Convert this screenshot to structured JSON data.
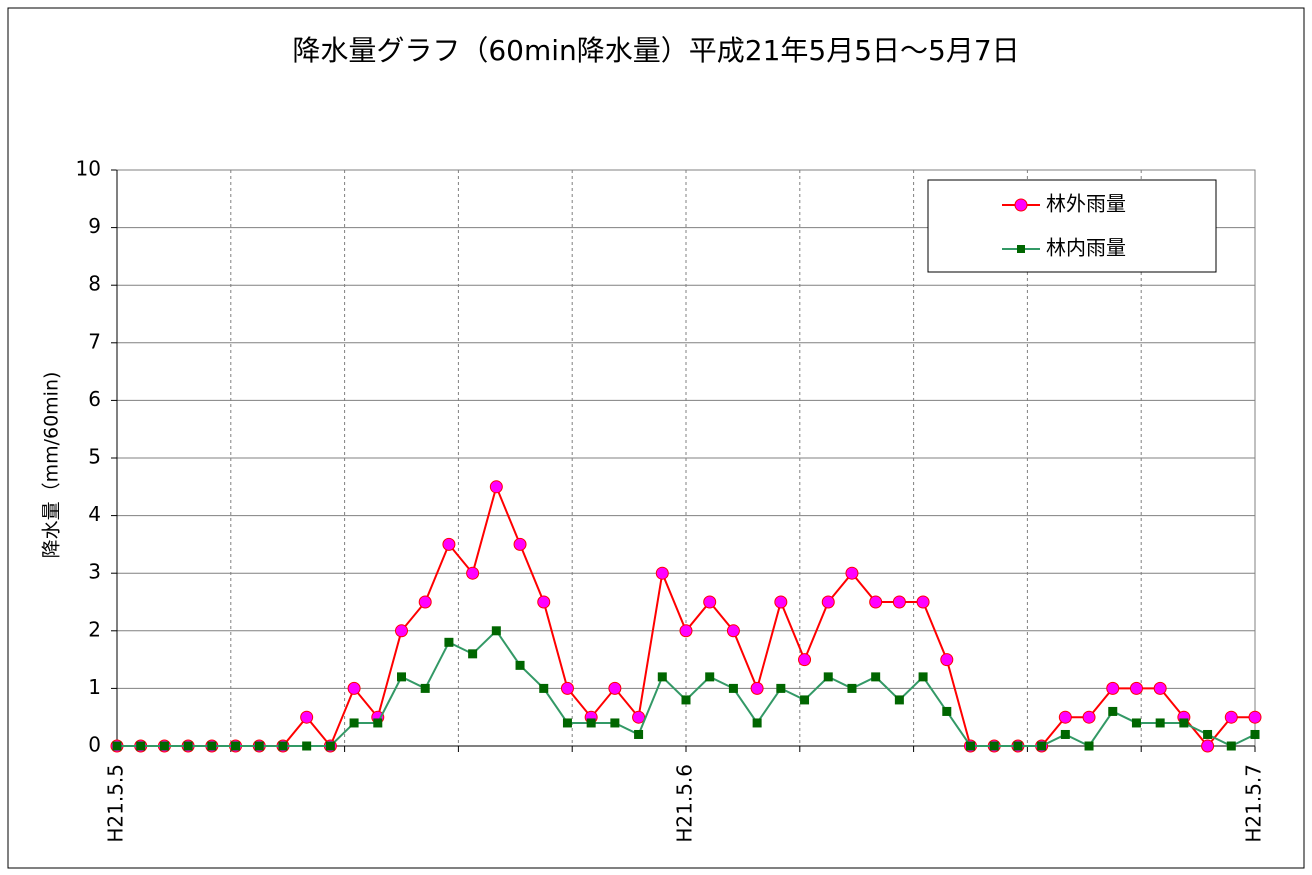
{
  "chart_data": {
    "type": "line",
    "title": "降水量グラフ（60min降水量）平成21年5月5日～5月7日",
    "y_label": "降水量（mm/60min)",
    "x": [
      0,
      1,
      2,
      3,
      4,
      5,
      6,
      7,
      8,
      9,
      10,
      11,
      12,
      13,
      14,
      15,
      16,
      17,
      18,
      19,
      20,
      21,
      22,
      23,
      24,
      25,
      26,
      27,
      28,
      29,
      30,
      31,
      32,
      33,
      34,
      35,
      36,
      37,
      38,
      39,
      40,
      41,
      42,
      43,
      44,
      45,
      46,
      47,
      48
    ],
    "series": [
      {
        "name": "林外雨量",
        "color": "#ff0000",
        "marker": "circle",
        "marker_color": "#ff00ff",
        "values": [
          0,
          0,
          0,
          0,
          0,
          0,
          0,
          0,
          0.5,
          0,
          1,
          0.5,
          2,
          2.5,
          3.5,
          3,
          4.5,
          3.5,
          2.5,
          1,
          0.5,
          1,
          0.5,
          3,
          2,
          2.5,
          2,
          1,
          2.5,
          1.5,
          2.5,
          3,
          2.5,
          2.5,
          2.5,
          1.5,
          0,
          0,
          0,
          0,
          0.5,
          0.5,
          1,
          1,
          1,
          0.5,
          0,
          0.5,
          0.5
        ]
      },
      {
        "name": "林内雨量",
        "color": "#339966",
        "marker": "square",
        "marker_color": "#006600",
        "values": [
          0,
          0,
          0,
          0,
          0,
          0,
          0,
          0,
          0,
          0,
          0.4,
          0.4,
          1.2,
          1.0,
          1.8,
          1.6,
          2.0,
          1.4,
          1.0,
          0.4,
          0.4,
          0.4,
          0.2,
          1.2,
          0.8,
          1.2,
          1.0,
          0.4,
          1.0,
          0.8,
          1.2,
          1.0,
          1.2,
          0.8,
          1.2,
          0.6,
          0,
          0,
          0,
          0,
          0.2,
          0,
          0.6,
          0.4,
          0.4,
          0.4,
          0.2,
          0,
          0.2
        ]
      }
    ],
    "xlim": [
      0,
      48
    ],
    "xticks": [
      {
        "value": 0,
        "label": "H21.5.5"
      },
      {
        "value": 4.8,
        "label": null
      },
      {
        "value": 9.6,
        "label": null
      },
      {
        "value": 14.4,
        "label": null
      },
      {
        "value": 19.2,
        "label": null
      },
      {
        "value": 24,
        "label": "H21.5.6"
      },
      {
        "value": 28.8,
        "label": null
      },
      {
        "value": 33.6,
        "label": null
      },
      {
        "value": 38.4,
        "label": null
      },
      {
        "value": 43.2,
        "label": null
      },
      {
        "value": 48,
        "label": "H21.5.7"
      }
    ],
    "ylim": [
      0,
      10
    ],
    "yticks": [
      0,
      1,
      2,
      3,
      4,
      5,
      6,
      7,
      8,
      9,
      10
    ],
    "grid": true,
    "legend": "upper right"
  }
}
